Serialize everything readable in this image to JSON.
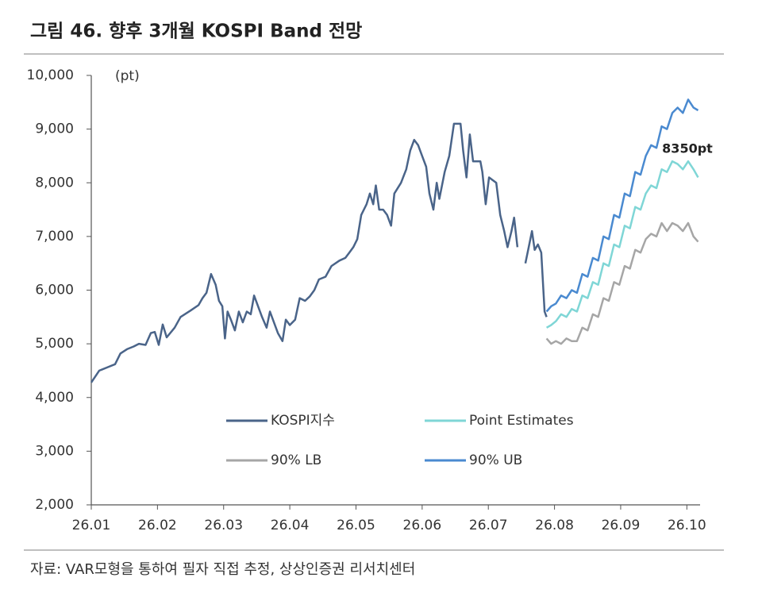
{
  "title": "그림 46. 향후 3개월 KOSPI Band 전망",
  "source": "자료: VAR모형을 통하여 필자 직접 추정, 상상인증권 리서치센터",
  "chart_data": {
    "type": "line",
    "unit_label": "(pt)",
    "annotation": "8350pt",
    "xlim": [
      0,
      9.2
    ],
    "xticks": [
      {
        "value": 0,
        "label": "26.01"
      },
      {
        "value": 1,
        "label": "26.02"
      },
      {
        "value": 2,
        "label": "26.03"
      },
      {
        "value": 3,
        "label": "26.04"
      },
      {
        "value": 4,
        "label": "26.05"
      },
      {
        "value": 5,
        "label": "26.06"
      },
      {
        "value": 6,
        "label": "26.07"
      },
      {
        "value": 7,
        "label": "26.08"
      },
      {
        "value": 8,
        "label": "26.09"
      },
      {
        "value": 9,
        "label": "26.10"
      }
    ],
    "ylim": [
      2000,
      10000
    ],
    "yticks": [
      {
        "value": 2000,
        "label": "2,000"
      },
      {
        "value": 3000,
        "label": "3,000"
      },
      {
        "value": 4000,
        "label": "4,000"
      },
      {
        "value": 5000,
        "label": "5,000"
      },
      {
        "value": 6000,
        "label": "6,000"
      },
      {
        "value": 7000,
        "label": "7,000"
      },
      {
        "value": 8000,
        "label": "8,000"
      },
      {
        "value": 9000,
        "label": "9,000"
      },
      {
        "value": 10000,
        "label": "10,000"
      }
    ],
    "grid": false,
    "series": [
      {
        "name": "KOSPI지수",
        "color": "#4a6489",
        "x": [
          0,
          0.12,
          0.24,
          0.36,
          0.44,
          0.54,
          0.64,
          0.72,
          0.82,
          0.9,
          0.96,
          1.02,
          1.08,
          1.14,
          1.26,
          1.35,
          1.5,
          1.62,
          1.68,
          1.74,
          1.81,
          1.88,
          1.93,
          1.98,
          2.02,
          2.06,
          2.11,
          2.17,
          2.23,
          2.29,
          2.35,
          2.41,
          2.46,
          2.52,
          2.58,
          2.65,
          2.7,
          2.76,
          2.82,
          2.89,
          2.94,
          3.0,
          3.08,
          3.15,
          3.23,
          3.3,
          3.37,
          3.44,
          3.54,
          3.63,
          3.75,
          3.84,
          3.9,
          3.96,
          4.02,
          4.08,
          4.16,
          4.21,
          4.26,
          4.3,
          4.35,
          4.41,
          4.47,
          4.53,
          4.58,
          4.68,
          4.76,
          4.82,
          4.88,
          4.94,
          5.0,
          5.06,
          5.11,
          5.17,
          5.22,
          5.26,
          5.34,
          5.41,
          5.48,
          5.58,
          5.62,
          5.67,
          5.72,
          5.77,
          5.88,
          5.91,
          5.96,
          6.01,
          6.12,
          6.18,
          6.24,
          6.29,
          6.35,
          6.39,
          6.44,
          6.5,
          6.56,
          6.61,
          6.66,
          6.7,
          6.75,
          6.8,
          6.85,
          6.88
        ],
        "values": [
          4280,
          4500,
          4560,
          4620,
          4820,
          4900,
          4950,
          5000,
          4980,
          5200,
          5220,
          4980,
          5360,
          5120,
          5300,
          5500,
          5620,
          5720,
          5850,
          5950,
          6300,
          6100,
          5800,
          5700,
          5100,
          5600,
          5450,
          5250,
          5600,
          5400,
          5600,
          5550,
          5900,
          5700,
          5500,
          5300,
          5600,
          5400,
          5200,
          5050,
          5450,
          5350,
          5450,
          5850,
          5800,
          5880,
          6000,
          6200,
          6250,
          6450,
          6550,
          6600,
          6700,
          6800,
          6950,
          7400,
          7600,
          7800,
          7600,
          7950,
          7500,
          7500,
          7400,
          7200,
          7800,
          8000,
          8250,
          8600,
          8800,
          8700,
          8500,
          8300,
          7800,
          7500,
          8000,
          7700,
          8200,
          8500,
          9100,
          9100,
          8600,
          8100,
          8900,
          8400,
          8400,
          8200,
          7600,
          8100,
          8000,
          7400,
          7100,
          6800,
          7100,
          7350,
          6800,
          null,
          6500,
          6800,
          7100,
          6750,
          6850,
          6700,
          5600,
          5500
        ]
      },
      {
        "name": "Point Estimates",
        "color": "#7fd6d6",
        "x": [
          6.88,
          6.95,
          7.02,
          7.1,
          7.18,
          7.26,
          7.34,
          7.42,
          7.5,
          7.58,
          7.66,
          7.74,
          7.82,
          7.9,
          7.98,
          8.06,
          8.14,
          8.22,
          8.3,
          8.38,
          8.46,
          8.54,
          8.62,
          8.7,
          8.78,
          8.86,
          8.94,
          9.02,
          9.1,
          9.17
        ],
        "values": [
          5300,
          5350,
          5420,
          5550,
          5500,
          5650,
          5600,
          5900,
          5850,
          6150,
          6100,
          6500,
          6450,
          6850,
          6800,
          7200,
          7150,
          7550,
          7500,
          7800,
          7950,
          7900,
          8250,
          8200,
          8400,
          8350,
          8250,
          8400,
          8250,
          8100
        ]
      },
      {
        "name": "90% LB",
        "color": "#a6a6a6",
        "x": [
          6.88,
          6.95,
          7.02,
          7.1,
          7.18,
          7.26,
          7.34,
          7.42,
          7.5,
          7.58,
          7.66,
          7.74,
          7.82,
          7.9,
          7.98,
          8.06,
          8.14,
          8.22,
          8.3,
          8.38,
          8.46,
          8.54,
          8.62,
          8.7,
          8.78,
          8.86,
          8.94,
          9.02,
          9.1,
          9.17
        ],
        "values": [
          5100,
          5000,
          5050,
          5000,
          5100,
          5050,
          5050,
          5300,
          5250,
          5550,
          5500,
          5850,
          5800,
          6150,
          6100,
          6450,
          6400,
          6750,
          6700,
          6950,
          7050,
          7000,
          7250,
          7100,
          7250,
          7200,
          7100,
          7250,
          7000,
          6900
        ]
      },
      {
        "name": "90% UB",
        "color": "#4a8ad0",
        "x": [
          6.88,
          6.95,
          7.02,
          7.1,
          7.18,
          7.26,
          7.34,
          7.42,
          7.5,
          7.58,
          7.66,
          7.74,
          7.82,
          7.9,
          7.98,
          8.06,
          8.14,
          8.22,
          8.3,
          8.38,
          8.46,
          8.54,
          8.62,
          8.7,
          8.78,
          8.86,
          8.94,
          9.02,
          9.1,
          9.17
        ],
        "values": [
          5600,
          5700,
          5750,
          5900,
          5850,
          6000,
          5950,
          6300,
          6250,
          6600,
          6550,
          7000,
          6950,
          7400,
          7350,
          7800,
          7750,
          8200,
          8150,
          8500,
          8700,
          8650,
          9050,
          9000,
          9300,
          9400,
          9300,
          9550,
          9400,
          9350
        ]
      }
    ]
  }
}
